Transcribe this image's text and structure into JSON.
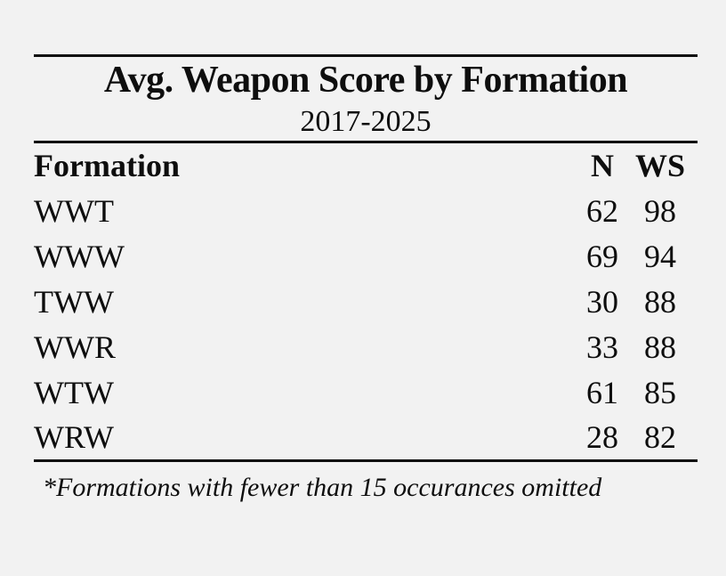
{
  "page": {
    "background_color": "#f2f2f2",
    "text_color": "#0e0e0e",
    "rule_color": "#0e0e0e"
  },
  "table": {
    "title": "Avg. Weapon Score by Formation",
    "subtitle": "2017-2025",
    "columns": [
      "Formation",
      "N",
      "WS"
    ],
    "rows": [
      {
        "formation": "WWT",
        "n": "62",
        "ws": "98"
      },
      {
        "formation": "WWW",
        "n": "69",
        "ws": "94"
      },
      {
        "formation": "TWW",
        "n": "30",
        "ws": "88"
      },
      {
        "formation": "WWR",
        "n": "33",
        "ws": "88"
      },
      {
        "formation": "WTW",
        "n": "61",
        "ws": "85"
      },
      {
        "formation": "WRW",
        "n": "28",
        "ws": "82"
      }
    ],
    "footnote": "*Formations with fewer than 15 occurances omitted"
  },
  "chart_data": {
    "type": "table",
    "title": "Avg. Weapon Score by Formation",
    "subtitle": "2017-2025",
    "columns": [
      "Formation",
      "N",
      "WS"
    ],
    "rows": [
      [
        "WWT",
        62,
        98
      ],
      [
        "WWW",
        69,
        94
      ],
      [
        "TWW",
        30,
        88
      ],
      [
        "WWR",
        33,
        88
      ],
      [
        "WTW",
        61,
        85
      ],
      [
        "WRW",
        28,
        82
      ]
    ],
    "footnote": "*Formations with fewer than 15 occurances omitted",
    "layout": {
      "grid": false,
      "rules": "top-mid-bottom horizontal only",
      "n_ws_alignment": "center"
    }
  }
}
